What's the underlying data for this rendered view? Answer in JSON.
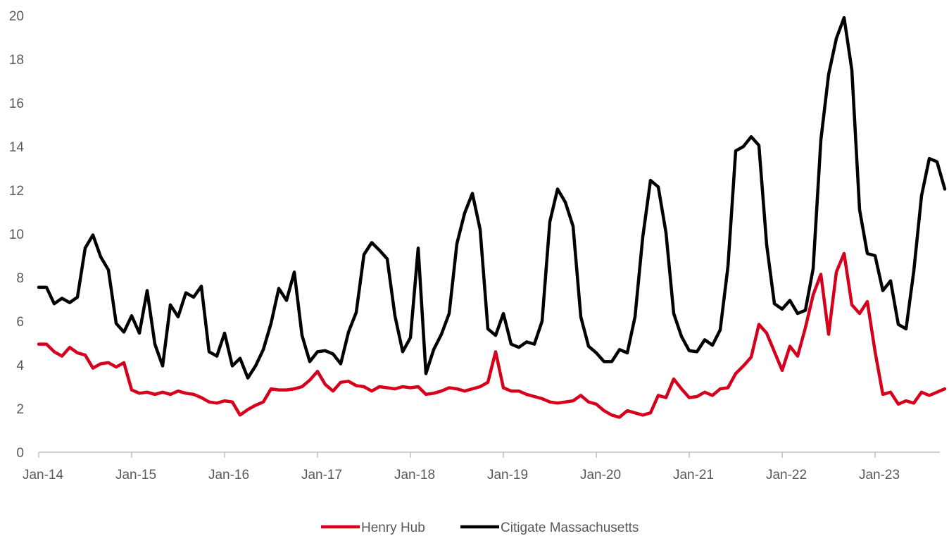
{
  "chart_data": {
    "type": "line",
    "title": "",
    "xlabel": "",
    "ylabel": "",
    "ylim": [
      0,
      20
    ],
    "yticks": [
      0,
      2,
      4,
      6,
      8,
      10,
      12,
      14,
      16,
      18,
      20
    ],
    "xtick_labels": [
      "Jan-14",
      "Jan-15",
      "Jan-16",
      "Jan-17",
      "Jan-18",
      "Jan-19",
      "Jan-20",
      "Jan-21",
      "Jan-22",
      "Jan-23"
    ],
    "x_start": "Jan-14",
    "x_frequency": "monthly",
    "grid": false,
    "legend_position": "bottom-center",
    "series": [
      {
        "name": "Henry Hub",
        "color": "#d7001c",
        "values": [
          4.95,
          4.95,
          4.6,
          4.4,
          4.8,
          4.55,
          4.45,
          3.85,
          4.05,
          4.1,
          3.9,
          4.1,
          2.85,
          2.7,
          2.75,
          2.65,
          2.75,
          2.65,
          2.8,
          2.7,
          2.65,
          2.5,
          2.3,
          2.25,
          2.35,
          2.3,
          1.7,
          1.95,
          2.15,
          2.3,
          2.9,
          2.85,
          2.85,
          2.9,
          3.0,
          3.3,
          3.7,
          3.1,
          2.8,
          3.2,
          3.25,
          3.05,
          3.0,
          2.8,
          3.0,
          2.95,
          2.9,
          3.0,
          2.95,
          3.0,
          2.65,
          2.7,
          2.8,
          2.95,
          2.9,
          2.8,
          2.9,
          3.0,
          3.2,
          4.6,
          2.95,
          2.8,
          2.8,
          2.65,
          2.55,
          2.45,
          2.3,
          2.25,
          2.3,
          2.35,
          2.6,
          2.3,
          2.2,
          1.9,
          1.7,
          1.6,
          1.9,
          1.8,
          1.7,
          1.8,
          2.6,
          2.5,
          3.35,
          2.9,
          2.5,
          2.55,
          2.75,
          2.6,
          2.9,
          2.95,
          3.6,
          3.95,
          4.35,
          5.85,
          5.45,
          4.6,
          3.75,
          4.85,
          4.4,
          5.7,
          7.2,
          8.15,
          5.4,
          8.25,
          9.1,
          6.75,
          6.35,
          6.9,
          4.6,
          2.65,
          2.75,
          2.2,
          2.35,
          2.25,
          2.75,
          2.6,
          2.75,
          2.9
        ]
      },
      {
        "name": "Citigate Massachusetts",
        "color": "#000000",
        "values": [
          7.55,
          7.55,
          6.8,
          7.05,
          6.85,
          7.1,
          9.35,
          9.95,
          8.95,
          8.35,
          5.9,
          5.5,
          6.25,
          5.45,
          7.4,
          4.95,
          3.95,
          6.75,
          6.2,
          7.3,
          7.1,
          7.6,
          4.6,
          4.4,
          5.45,
          3.95,
          4.3,
          3.4,
          3.95,
          4.7,
          5.9,
          7.5,
          6.95,
          8.25,
          5.35,
          4.15,
          4.6,
          4.65,
          4.5,
          4.05,
          5.5,
          6.4,
          9.05,
          9.6,
          9.25,
          8.85,
          6.25,
          4.6,
          5.25,
          9.35,
          3.6,
          4.7,
          5.4,
          6.35,
          9.55,
          10.95,
          11.85,
          10.2,
          5.65,
          5.35,
          6.35,
          4.95,
          4.8,
          5.05,
          4.95,
          6.0,
          10.55,
          12.05,
          11.45,
          10.35,
          6.2,
          4.85,
          4.55,
          4.15,
          4.15,
          4.7,
          4.55,
          6.2,
          9.85,
          12.45,
          12.15,
          10.05,
          6.35,
          5.3,
          4.65,
          4.6,
          5.15,
          4.9,
          5.6,
          8.5,
          13.8,
          14.0,
          14.45,
          14.05,
          9.5,
          6.8,
          6.55,
          6.95,
          6.35,
          6.5,
          8.4,
          14.3,
          17.3,
          18.95,
          19.9,
          17.5,
          11.1,
          9.1,
          9.0,
          7.4,
          7.85,
          5.85,
          5.65,
          8.3,
          11.75,
          13.45,
          13.3,
          12.05
        ]
      }
    ]
  }
}
